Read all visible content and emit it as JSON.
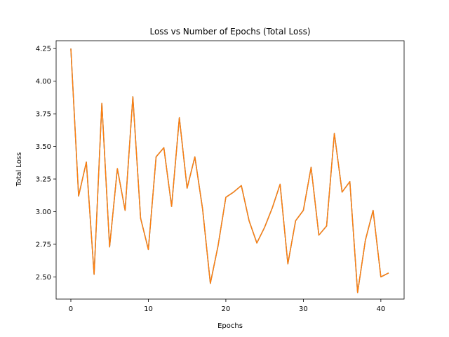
{
  "chart_data": {
    "type": "line",
    "title": "Loss vs Number of Epochs (Total Loss)",
    "xlabel": "Epochs",
    "ylabel": "Total Loss",
    "xlim": [
      -1.9,
      43.0
    ],
    "ylim": [
      2.33,
      4.31
    ],
    "x_ticks": [
      0,
      10,
      20,
      30,
      40
    ],
    "y_ticks": [
      2.5,
      2.75,
      3.0,
      3.25,
      3.5,
      3.75,
      4.0,
      4.25
    ],
    "x_tick_labels": [
      "0",
      "10",
      "20",
      "30",
      "40"
    ],
    "y_tick_labels": [
      "2.50",
      "2.75",
      "3.00",
      "3.25",
      "3.50",
      "3.75",
      "4.00",
      "4.25"
    ],
    "grid": false,
    "legend": "none",
    "series": [
      {
        "color": "#1f77b4",
        "x": [
          0,
          1,
          2,
          3,
          4,
          5,
          6,
          7,
          8,
          9,
          10,
          11,
          12,
          13,
          14,
          15,
          16,
          17,
          18,
          19,
          20,
          21,
          22,
          23,
          24,
          25,
          26,
          27,
          28,
          29,
          30,
          31,
          32,
          33,
          34,
          35,
          36,
          37,
          38,
          39,
          40,
          41
        ],
        "values": [
          4.25,
          3.12,
          3.38,
          2.52,
          3.83,
          2.73,
          3.33,
          3.01,
          3.88,
          2.95,
          2.71,
          3.42,
          3.49,
          3.04,
          3.72,
          3.18,
          3.42,
          3.02,
          2.45,
          2.74,
          3.11,
          3.15,
          3.2,
          2.93,
          2.76,
          2.88,
          3.03,
          3.21,
          2.6,
          2.93,
          3.01,
          3.34,
          2.82,
          2.89,
          3.6,
          3.15,
          3.23,
          2.38,
          2.78,
          3.01,
          2.5,
          2.53
        ]
      },
      {
        "color": "#ff7f0e",
        "x": [
          0,
          1,
          2,
          3,
          4,
          5,
          6,
          7,
          8,
          9,
          10,
          11,
          12,
          13,
          14,
          15,
          16,
          17,
          18,
          19,
          20,
          21,
          22,
          23,
          24,
          25,
          26,
          27,
          28,
          29,
          30,
          31,
          32,
          33,
          34,
          35,
          36,
          37,
          38,
          39,
          40,
          41
        ],
        "values": [
          4.25,
          3.12,
          3.38,
          2.52,
          3.83,
          2.73,
          3.33,
          3.01,
          3.88,
          2.95,
          2.71,
          3.42,
          3.49,
          3.04,
          3.72,
          3.18,
          3.42,
          3.02,
          2.45,
          2.74,
          3.11,
          3.15,
          3.2,
          2.93,
          2.76,
          2.88,
          3.03,
          3.21,
          2.6,
          2.93,
          3.01,
          3.34,
          2.82,
          2.89,
          3.6,
          3.15,
          3.23,
          2.38,
          2.78,
          3.01,
          2.5,
          2.53
        ]
      }
    ]
  }
}
